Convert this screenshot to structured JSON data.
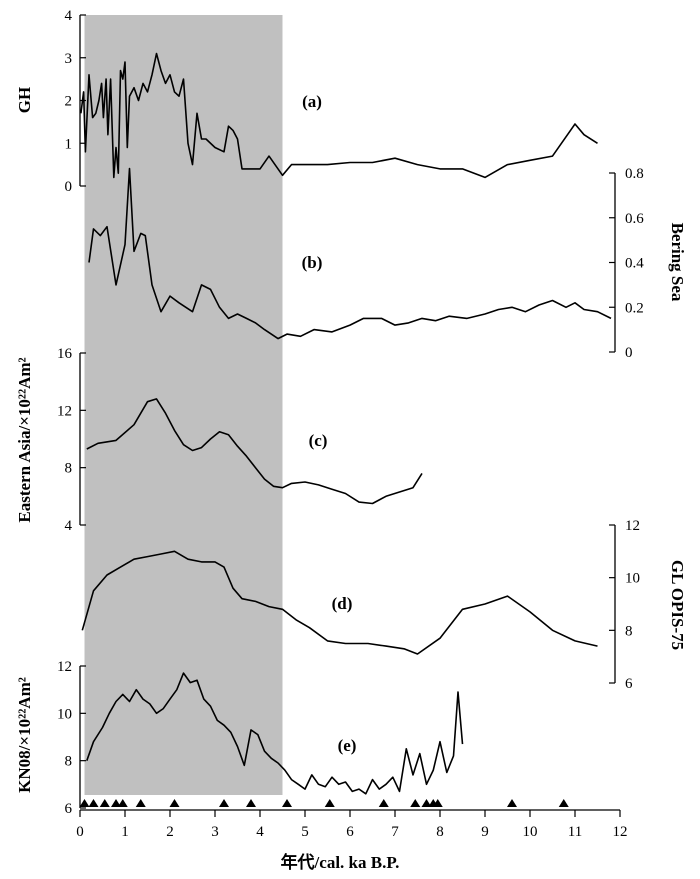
{
  "chart_data": [
    {
      "type": "line",
      "panel_label": "(a)",
      "ylabel": "GH",
      "y_axis_side": "left",
      "ylim": [
        0,
        4
      ],
      "yticks": [
        0,
        1,
        2,
        3,
        4
      ],
      "x": [
        0.02,
        0.08,
        0.12,
        0.2,
        0.28,
        0.35,
        0.42,
        0.48,
        0.52,
        0.58,
        0.62,
        0.68,
        0.75,
        0.8,
        0.85,
        0.9,
        0.95,
        1.0,
        1.05,
        1.1,
        1.2,
        1.3,
        1.4,
        1.5,
        1.6,
        1.7,
        1.8,
        1.9,
        2.0,
        2.1,
        2.2,
        2.3,
        2.4,
        2.5,
        2.6,
        2.7,
        2.8,
        3.0,
        3.2,
        3.3,
        3.4,
        3.5,
        3.6,
        3.8,
        4.0,
        4.2,
        4.5,
        4.7,
        5.0,
        5.5,
        6.0,
        6.5,
        7.0,
        7.5,
        8.0,
        8.5,
        9.0,
        9.5,
        10.0,
        10.5,
        11.0,
        11.2,
        11.5
      ],
      "y": [
        1.7,
        2.2,
        0.8,
        2.6,
        1.6,
        1.7,
        2.0,
        2.4,
        1.6,
        2.5,
        1.2,
        2.5,
        0.2,
        0.9,
        0.3,
        2.7,
        2.5,
        2.9,
        0.9,
        2.1,
        2.3,
        2.0,
        2.4,
        2.2,
        2.6,
        3.1,
        2.7,
        2.4,
        2.6,
        2.2,
        2.1,
        2.5,
        1.0,
        0.5,
        1.7,
        1.1,
        1.1,
        0.9,
        0.8,
        1.4,
        1.3,
        1.1,
        0.4,
        0.4,
        0.4,
        0.7,
        0.25,
        0.5,
        0.5,
        0.5,
        0.55,
        0.55,
        0.65,
        0.5,
        0.4,
        0.4,
        0.2,
        0.5,
        0.6,
        0.7,
        1.45,
        1.2,
        1.0
      ]
    },
    {
      "type": "line",
      "panel_label": "(b)",
      "ylabel": "Bering Sea",
      "y_axis_side": "right",
      "ylim": [
        0,
        0.8
      ],
      "yticks": [
        0,
        0.2,
        0.4,
        0.6,
        0.8
      ],
      "x": [
        0.2,
        0.3,
        0.45,
        0.6,
        0.8,
        1.0,
        1.1,
        1.2,
        1.35,
        1.45,
        1.6,
        1.8,
        2.0,
        2.2,
        2.5,
        2.7,
        2.9,
        3.1,
        3.3,
        3.5,
        3.7,
        3.9,
        4.1,
        4.4,
        4.6,
        4.9,
        5.2,
        5.6,
        6.0,
        6.3,
        6.7,
        7.0,
        7.3,
        7.6,
        7.9,
        8.2,
        8.6,
        9.0,
        9.3,
        9.6,
        9.9,
        10.2,
        10.5,
        10.8,
        11.0,
        11.2,
        11.5,
        11.8
      ],
      "y": [
        0.4,
        0.55,
        0.52,
        0.56,
        0.3,
        0.48,
        0.82,
        0.45,
        0.53,
        0.52,
        0.3,
        0.18,
        0.25,
        0.22,
        0.18,
        0.3,
        0.28,
        0.2,
        0.15,
        0.17,
        0.15,
        0.13,
        0.1,
        0.06,
        0.08,
        0.07,
        0.1,
        0.09,
        0.12,
        0.15,
        0.15,
        0.12,
        0.13,
        0.15,
        0.14,
        0.16,
        0.15,
        0.17,
        0.19,
        0.2,
        0.18,
        0.21,
        0.23,
        0.2,
        0.22,
        0.19,
        0.18,
        0.15
      ]
    },
    {
      "type": "line",
      "panel_label": "(c)",
      "ylabel": "Eastern Asia/×10²²Am²",
      "y_axis_side": "left",
      "ylim": [
        4,
        16
      ],
      "yticks": [
        4,
        8,
        12,
        16
      ],
      "x": [
        0.15,
        0.4,
        0.8,
        1.2,
        1.5,
        1.7,
        1.9,
        2.1,
        2.3,
        2.5,
        2.7,
        2.9,
        3.1,
        3.3,
        3.5,
        3.7,
        3.9,
        4.1,
        4.3,
        4.5,
        4.7,
        5.0,
        5.3,
        5.6,
        5.9,
        6.2,
        6.5,
        6.8,
        7.1,
        7.4,
        7.6
      ],
      "y": [
        9.3,
        9.7,
        9.9,
        11.0,
        12.6,
        12.8,
        11.8,
        10.6,
        9.6,
        9.2,
        9.4,
        10.0,
        10.5,
        10.3,
        9.5,
        8.8,
        8.0,
        7.2,
        6.7,
        6.6,
        6.9,
        7.0,
        6.8,
        6.5,
        6.2,
        5.6,
        5.5,
        6.0,
        6.3,
        6.6,
        7.6
      ]
    },
    {
      "type": "line",
      "panel_label": "(d)",
      "ylabel": "GL OPIS-75",
      "y_axis_side": "right",
      "ylim": [
        6,
        12
      ],
      "yticks": [
        6,
        8,
        10,
        12
      ],
      "x": [
        0.05,
        0.3,
        0.6,
        0.9,
        1.2,
        1.5,
        1.8,
        2.1,
        2.4,
        2.7,
        3.0,
        3.2,
        3.4,
        3.6,
        3.9,
        4.2,
        4.5,
        4.8,
        5.1,
        5.5,
        5.9,
        6.4,
        6.8,
        7.2,
        7.5,
        8.0,
        8.5,
        9.0,
        9.5,
        10.0,
        10.5,
        11.0,
        11.5
      ],
      "y": [
        8.0,
        9.5,
        10.1,
        10.4,
        10.7,
        10.8,
        10.9,
        11.0,
        10.7,
        10.6,
        10.6,
        10.4,
        9.6,
        9.2,
        9.1,
        8.9,
        8.8,
        8.4,
        8.1,
        7.6,
        7.5,
        7.5,
        7.4,
        7.3,
        7.1,
        7.7,
        8.8,
        9.0,
        9.3,
        8.7,
        8.0,
        7.6,
        7.4
      ]
    },
    {
      "type": "line",
      "panel_label": "(e)",
      "ylabel": "KN08/×10²²Am²",
      "y_axis_side": "left",
      "ylim": [
        6,
        12
      ],
      "yticks": [
        6,
        8,
        10,
        12
      ],
      "x": [
        0.15,
        0.3,
        0.5,
        0.65,
        0.8,
        0.95,
        1.1,
        1.25,
        1.4,
        1.55,
        1.7,
        1.85,
        2.0,
        2.15,
        2.3,
        2.45,
        2.6,
        2.75,
        2.9,
        3.05,
        3.2,
        3.35,
        3.5,
        3.65,
        3.8,
        3.95,
        4.1,
        4.25,
        4.4,
        4.55,
        4.7,
        4.85,
        5.0,
        5.15,
        5.3,
        5.45,
        5.6,
        5.75,
        5.9,
        6.05,
        6.2,
        6.35,
        6.5,
        6.65,
        6.8,
        6.95,
        7.1,
        7.25,
        7.4,
        7.55,
        7.7,
        7.85,
        8.0,
        8.15,
        8.3,
        8.4,
        8.5
      ],
      "y": [
        8.0,
        8.8,
        9.4,
        10.0,
        10.5,
        10.8,
        10.5,
        11.0,
        10.6,
        10.4,
        10.0,
        10.2,
        10.6,
        11.0,
        11.7,
        11.3,
        11.4,
        10.6,
        10.3,
        9.7,
        9.5,
        9.2,
        8.6,
        7.8,
        9.3,
        9.1,
        8.4,
        8.1,
        7.9,
        7.6,
        7.2,
        7.0,
        6.8,
        7.4,
        7.0,
        6.9,
        7.3,
        7.0,
        7.1,
        6.7,
        6.8,
        6.6,
        7.2,
        6.8,
        7.0,
        7.3,
        6.7,
        8.5,
        7.4,
        8.3,
        7.0,
        7.6,
        8.8,
        7.5,
        8.2,
        10.9,
        8.7
      ]
    }
  ],
  "shared_x": {
    "label": "年代/cal. ka B.P.",
    "xlim": [
      0,
      12
    ],
    "xticks": [
      0,
      1,
      2,
      3,
      4,
      5,
      6,
      7,
      8,
      9,
      10,
      11,
      12
    ]
  },
  "shaded_band": {
    "x_range": [
      0.1,
      4.5
    ],
    "color": "#c0c0c0"
  },
  "dating_markers": {
    "symbol": "triangle-up",
    "x": [
      0.1,
      0.3,
      0.55,
      0.8,
      0.95,
      1.35,
      2.1,
      3.2,
      3.8,
      4.6,
      5.55,
      6.75,
      7.45,
      7.7,
      7.85,
      7.95,
      9.6,
      10.75
    ]
  },
  "colors": {
    "line": "#000000",
    "axis": "#000000",
    "background": "#ffffff"
  }
}
